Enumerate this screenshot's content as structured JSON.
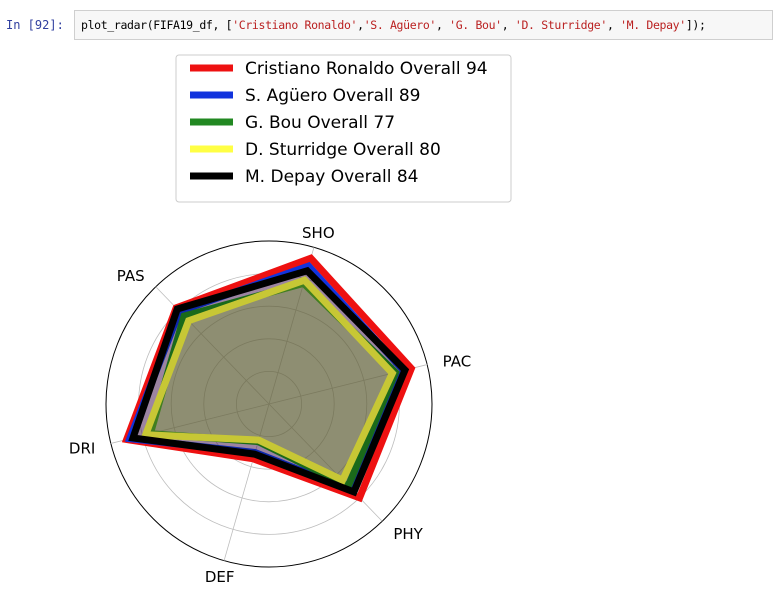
{
  "cell": {
    "prompt": "In  [92]:",
    "code_prefix": "plot_radar(FIFA19_df, [",
    "code_args": [
      "'Cristiano Ronaldo'",
      "'S. Agüero'",
      "'G. Bou'",
      "'D. Sturridge'",
      "'M. Depay'"
    ],
    "code_suffix": "]);"
  },
  "chart_data": {
    "type": "radar",
    "axes": [
      "PAC",
      "SHO",
      "PAS",
      "DRI",
      "DEF",
      "PHY"
    ],
    "rmax": 100,
    "grid": true,
    "legend_position": "top",
    "series": [
      {
        "name": "Cristiano Ronaldo Overall 94",
        "color": "#ee1111",
        "values": [
          90,
          93,
          82,
          90,
          35,
          80
        ]
      },
      {
        "name": "S. Agüero Overall 89",
        "color": "#1133dd",
        "values": [
          85,
          88,
          79,
          88,
          31,
          74
        ]
      },
      {
        "name": "G. Bou Overall 77",
        "color": "#228822",
        "values": [
          80,
          77,
          75,
          75,
          24,
          70
        ]
      },
      {
        "name": "D. Sturridge Overall 80",
        "color": "#ffff44",
        "values": [
          78,
          79,
          71,
          78,
          23,
          65
        ]
      },
      {
        "name": "M. Depay Overall 84",
        "color": "#000000",
        "values": [
          86,
          85,
          81,
          86,
          32,
          75
        ]
      }
    ]
  }
}
